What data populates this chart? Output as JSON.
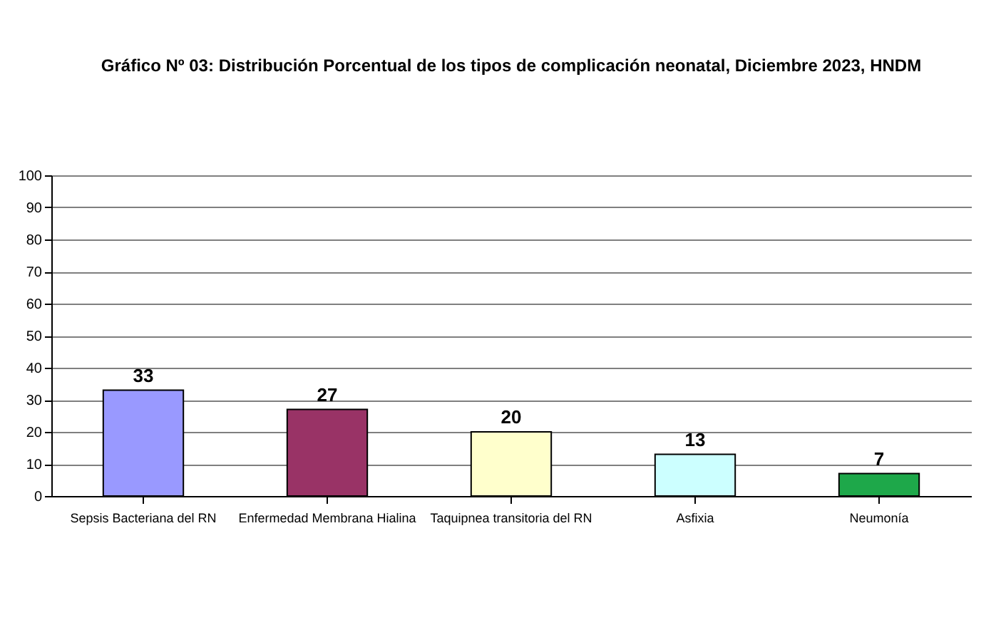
{
  "chart_data": {
    "type": "bar",
    "title": "Gráfico Nº 03: Distribución Porcentual de los tipos de complicación neonatal, Diciembre 2023, HNDM",
    "categories": [
      "Sepsis Bacteriana del RN",
      "Enfermedad Membrana Hialina",
      "Taquipnea transitoria del RN",
      "Asfixia",
      "Neumonía"
    ],
    "values": [
      33,
      27,
      20,
      13,
      7
    ],
    "colors": [
      "#9999ff",
      "#993366",
      "#ffffcc",
      "#ccffff",
      "#1ea84a"
    ],
    "ylim": [
      0,
      100
    ],
    "yticks": [
      0,
      10,
      20,
      30,
      40,
      50,
      60,
      70,
      80,
      90,
      100
    ],
    "grid": "y",
    "data_labels": true
  }
}
